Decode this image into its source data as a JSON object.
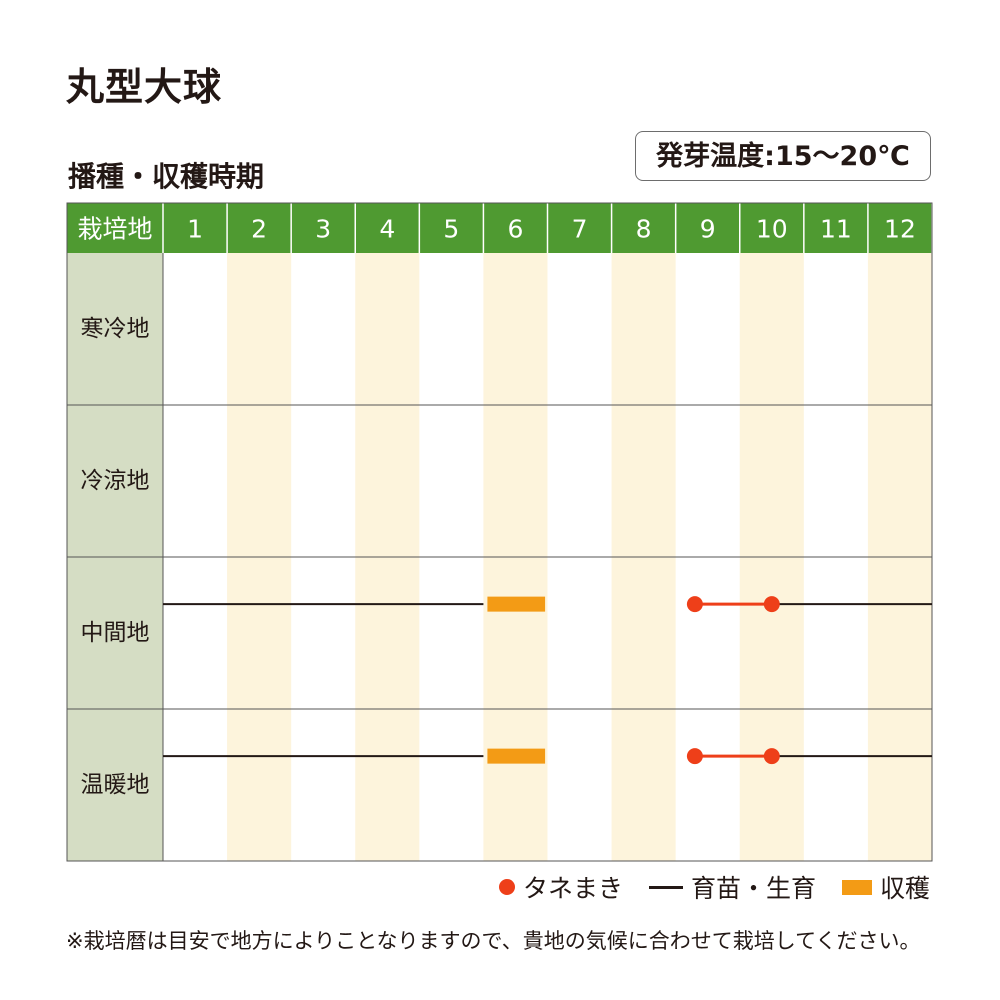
{
  "title": "丸型大球",
  "subtitle": "播種・収穫時期",
  "germination_temp": "発芽温度:15〜20℃",
  "colors": {
    "header_green": "#4f9a31",
    "label_column": "#d5ddc4",
    "stripe": "#fdf4dc",
    "sowing": "#ee3f19",
    "harvest": "#f39b15",
    "growing": "#231815"
  },
  "chart_data": {
    "type": "table",
    "header_label": "栽培地",
    "months": [
      "1",
      "2",
      "3",
      "4",
      "5",
      "6",
      "7",
      "8",
      "9",
      "10",
      "11",
      "12"
    ],
    "regions": [
      {
        "name": "寒冷地",
        "sowing": [],
        "growing": [],
        "harvest": []
      },
      {
        "name": "冷涼地",
        "sowing": [],
        "growing": [],
        "harvest": []
      },
      {
        "name": "中間地",
        "growing": [
          [
            1.0,
            6.0
          ],
          [
            10.5,
            13.0
          ]
        ],
        "harvest": [
          [
            6.0,
            6.9
          ]
        ],
        "sowing": {
          "start": 9.3,
          "end": 10.5
        }
      },
      {
        "name": "温暖地",
        "growing": [
          [
            1.0,
            6.0
          ],
          [
            10.5,
            13.0
          ]
        ],
        "harvest": [
          [
            6.0,
            6.9
          ]
        ],
        "sowing": {
          "start": 9.3,
          "end": 10.5
        }
      }
    ]
  },
  "legend": {
    "sowing": "タネまき",
    "growing": "育苗・生育",
    "harvest": "収穫"
  },
  "note": "※栽培暦は目安で地方によりことなりますので、貴地の気候に合わせて栽培してください。"
}
